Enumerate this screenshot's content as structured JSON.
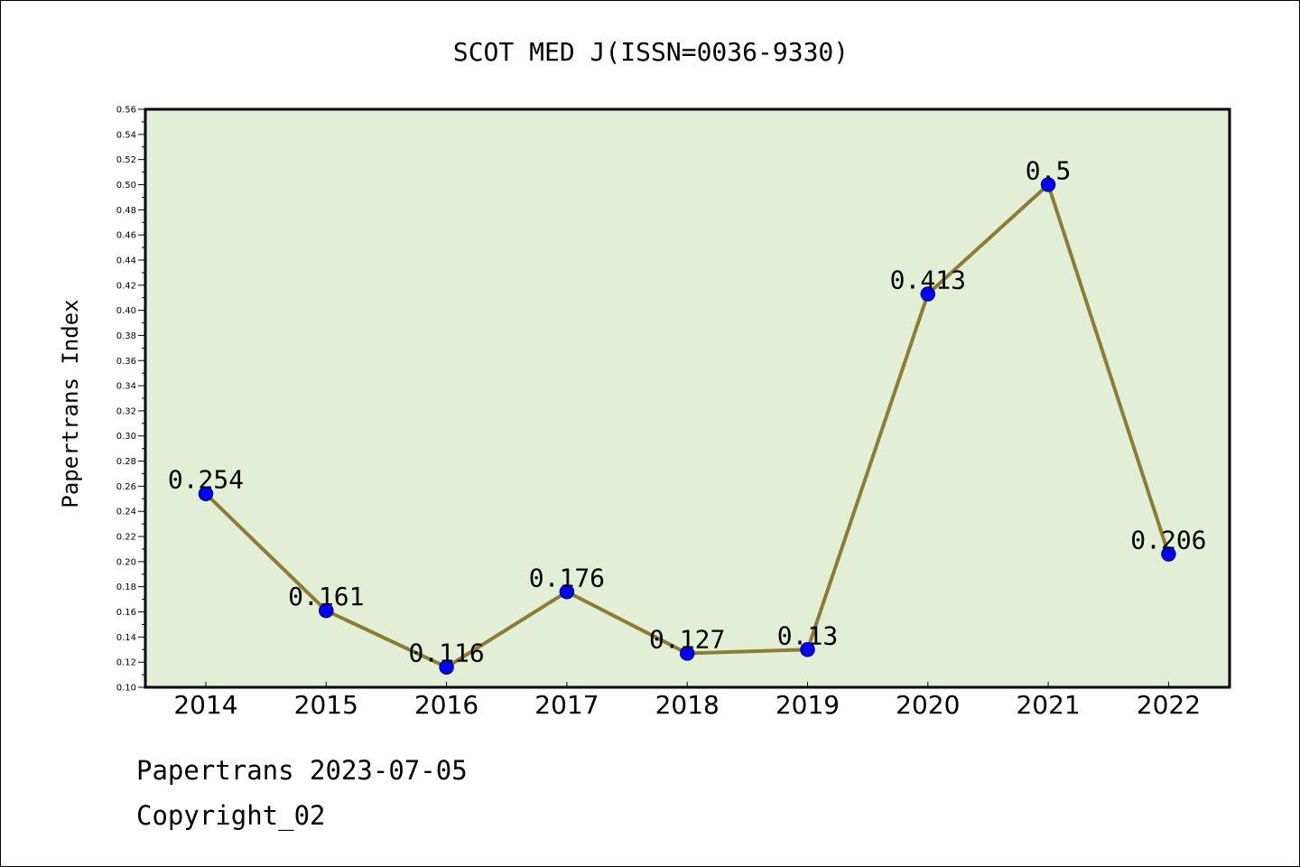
{
  "chart_data": {
    "type": "line",
    "title": "SCOT MED J(ISSN=0036-9330)",
    "ylabel": "Papertrans Index",
    "xlabel": "",
    "categories": [
      "2014",
      "2015",
      "2016",
      "2017",
      "2018",
      "2019",
      "2020",
      "2021",
      "2022"
    ],
    "values": [
      0.254,
      0.161,
      0.116,
      0.176,
      0.127,
      0.13,
      0.413,
      0.5,
      0.206
    ],
    "data_labels": [
      "0.254",
      "0.161",
      "0.116",
      "0.176",
      "0.127",
      "0.13",
      "0.413",
      "0.5",
      "0.206"
    ],
    "ylim": [
      0.1,
      0.56
    ],
    "yticks": [
      "0.10",
      "0.12",
      "0.14",
      "0.16",
      "0.18",
      "0.20",
      "0.22",
      "0.24",
      "0.26",
      "0.28",
      "0.30",
      "0.32",
      "0.34",
      "0.36",
      "0.38",
      "0.40",
      "0.42",
      "0.44",
      "0.46",
      "0.48",
      "0.50",
      "0.52",
      "0.54",
      "0.56"
    ],
    "grid": false,
    "colors": {
      "plot_background": "#e2efd6",
      "line": "#8b7d35",
      "marker": "#0000ff",
      "marker_edge": "#00008b"
    }
  },
  "footer": {
    "line1": "Papertrans 2023-07-05",
    "line2": "Copyright_02"
  }
}
